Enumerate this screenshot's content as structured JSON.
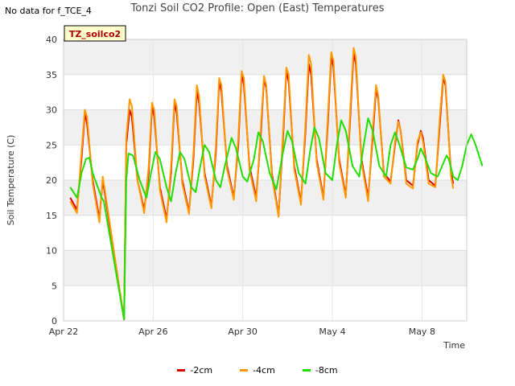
{
  "header": {
    "no_data": "No data for f_TCE_4",
    "title": "Tonzi Soil CO2 Profile: Open (East) Temperatures"
  },
  "chart_data": {
    "type": "line",
    "title": "Tonzi Soil CO2 Profile: Open (East) Temperatures",
    "xlabel": "Time",
    "ylabel": "Soil Temperature (C)",
    "xlim": [
      0,
      18
    ],
    "ylim": [
      0,
      40
    ],
    "yticks": [
      0,
      5,
      10,
      15,
      20,
      25,
      30,
      35,
      40
    ],
    "xticks": [
      {
        "value": 0,
        "label": "Apr 22"
      },
      {
        "value": 4,
        "label": "Apr 26"
      },
      {
        "value": 8,
        "label": "Apr 30"
      },
      {
        "value": 12,
        "label": "May 4"
      },
      {
        "value": 16,
        "label": "May 8"
      }
    ],
    "annotation": "TZ_soilco2",
    "grid": true,
    "legend_position": "bottom",
    "series": [
      {
        "name": "-2cm",
        "color": "#dd0000",
        "points": [
          [
            0.3,
            17.5
          ],
          [
            0.6,
            15.8
          ],
          [
            0.8,
            23
          ],
          [
            0.95,
            29.5
          ],
          [
            1.05,
            28
          ],
          [
            1.3,
            20
          ],
          [
            1.6,
            14.5
          ],
          [
            1.75,
            20
          ],
          [
            1.8,
            19
          ],
          [
            2.7,
            0.2
          ],
          [
            2.8,
            25
          ],
          [
            2.95,
            30
          ],
          [
            3.05,
            29
          ],
          [
            3.3,
            20
          ],
          [
            3.6,
            15.8
          ],
          [
            3.8,
            21
          ],
          [
            3.95,
            30.5
          ],
          [
            4.05,
            29
          ],
          [
            4.3,
            19
          ],
          [
            4.6,
            14.5
          ],
          [
            4.8,
            21
          ],
          [
            4.95,
            31
          ],
          [
            5.05,
            29.5
          ],
          [
            5.3,
            20
          ],
          [
            5.6,
            15.5
          ],
          [
            5.8,
            23
          ],
          [
            5.95,
            32.5
          ],
          [
            6.05,
            31
          ],
          [
            6.3,
            21
          ],
          [
            6.6,
            16.3
          ],
          [
            6.8,
            24
          ],
          [
            6.95,
            34
          ],
          [
            7.05,
            32.5
          ],
          [
            7.3,
            22
          ],
          [
            7.6,
            17.5
          ],
          [
            7.8,
            25
          ],
          [
            7.95,
            35
          ],
          [
            8.05,
            33.5
          ],
          [
            8.3,
            22
          ],
          [
            8.6,
            17.5
          ],
          [
            8.8,
            26
          ],
          [
            8.95,
            34.5
          ],
          [
            9.05,
            33
          ],
          [
            9.3,
            21
          ],
          [
            9.6,
            15
          ],
          [
            9.8,
            26
          ],
          [
            9.95,
            35.5
          ],
          [
            10.05,
            34
          ],
          [
            10.3,
            22
          ],
          [
            10.6,
            16.8
          ],
          [
            10.8,
            27
          ],
          [
            10.95,
            36.5
          ],
          [
            11.05,
            35
          ],
          [
            11.3,
            23
          ],
          [
            11.6,
            17.5
          ],
          [
            11.8,
            28
          ],
          [
            11.95,
            37.5
          ],
          [
            12.05,
            36
          ],
          [
            12.3,
            23
          ],
          [
            12.6,
            17.8
          ],
          [
            12.8,
            29
          ],
          [
            12.95,
            38
          ],
          [
            13.05,
            36.5
          ],
          [
            13.3,
            23
          ],
          [
            13.6,
            17.5
          ],
          [
            13.8,
            26
          ],
          [
            13.95,
            33
          ],
          [
            14.05,
            31.5
          ],
          [
            14.3,
            21
          ],
          [
            14.6,
            19.8
          ],
          [
            14.8,
            25
          ],
          [
            14.95,
            28.5
          ],
          [
            15.05,
            27
          ],
          [
            15.3,
            20
          ],
          [
            15.6,
            19.2
          ],
          [
            15.8,
            25
          ],
          [
            15.95,
            27
          ],
          [
            16.05,
            26
          ],
          [
            16.3,
            20
          ],
          [
            16.6,
            19.2
          ],
          [
            16.8,
            28
          ],
          [
            16.95,
            34.5
          ],
          [
            17.05,
            33.5
          ],
          [
            17.3,
            21
          ],
          [
            17.4,
            19.5
          ]
        ]
      },
      {
        "name": "-4cm",
        "color": "#ff9900",
        "points": [
          [
            0.3,
            17
          ],
          [
            0.6,
            15.3
          ],
          [
            0.8,
            24
          ],
          [
            0.95,
            30
          ],
          [
            1.05,
            29
          ],
          [
            1.3,
            19.5
          ],
          [
            1.6,
            14
          ],
          [
            1.75,
            20.5
          ],
          [
            1.8,
            19.5
          ],
          [
            2.7,
            0.2
          ],
          [
            2.8,
            26
          ],
          [
            2.95,
            31.5
          ],
          [
            3.05,
            30.5
          ],
          [
            3.3,
            20
          ],
          [
            3.6,
            15.3
          ],
          [
            3.8,
            22
          ],
          [
            3.95,
            31
          ],
          [
            4.05,
            30
          ],
          [
            4.3,
            18.5
          ],
          [
            4.6,
            14
          ],
          [
            4.8,
            22
          ],
          [
            4.95,
            31.5
          ],
          [
            5.05,
            30.5
          ],
          [
            5.3,
            19.5
          ],
          [
            5.6,
            15.2
          ],
          [
            5.8,
            24
          ],
          [
            5.95,
            33.5
          ],
          [
            6.05,
            32
          ],
          [
            6.3,
            20.5
          ],
          [
            6.6,
            16
          ],
          [
            6.8,
            25
          ],
          [
            6.95,
            34.5
          ],
          [
            7.05,
            33.5
          ],
          [
            7.3,
            21.5
          ],
          [
            7.6,
            17.2
          ],
          [
            7.8,
            26
          ],
          [
            7.95,
            35.5
          ],
          [
            8.05,
            34.5
          ],
          [
            8.3,
            21.5
          ],
          [
            8.6,
            17
          ],
          [
            8.8,
            27
          ],
          [
            8.95,
            34.8
          ],
          [
            9.05,
            33.5
          ],
          [
            9.3,
            20.5
          ],
          [
            9.6,
            14.8
          ],
          [
            9.8,
            27
          ],
          [
            9.95,
            36
          ],
          [
            10.05,
            35
          ],
          [
            10.3,
            21.5
          ],
          [
            10.6,
            16.5
          ],
          [
            10.8,
            28
          ],
          [
            10.95,
            37.8
          ],
          [
            11.05,
            36.5
          ],
          [
            11.3,
            22.5
          ],
          [
            11.6,
            17.2
          ],
          [
            11.8,
            29
          ],
          [
            11.95,
            38.2
          ],
          [
            12.05,
            37
          ],
          [
            12.3,
            22.5
          ],
          [
            12.6,
            17.5
          ],
          [
            12.8,
            30
          ],
          [
            12.95,
            38.8
          ],
          [
            13.05,
            37.5
          ],
          [
            13.3,
            22.5
          ],
          [
            13.6,
            17
          ],
          [
            13.8,
            27
          ],
          [
            13.95,
            33.5
          ],
          [
            14.05,
            32
          ],
          [
            14.3,
            20.5
          ],
          [
            14.6,
            19.5
          ],
          [
            14.8,
            25.5
          ],
          [
            14.95,
            28.3
          ],
          [
            15.05,
            27
          ],
          [
            15.3,
            19.5
          ],
          [
            15.6,
            18.8
          ],
          [
            15.8,
            25.5
          ],
          [
            15.95,
            26.8
          ],
          [
            16.05,
            25.5
          ],
          [
            16.3,
            19.5
          ],
          [
            16.6,
            19
          ],
          [
            16.8,
            29
          ],
          [
            16.95,
            35
          ],
          [
            17.05,
            34
          ],
          [
            17.3,
            20.5
          ],
          [
            17.4,
            18.8
          ]
        ]
      },
      {
        "name": "-8cm",
        "color": "#22dd00",
        "points": [
          [
            0.3,
            19
          ],
          [
            0.6,
            17.5
          ],
          [
            0.8,
            21
          ],
          [
            1.0,
            23
          ],
          [
            1.15,
            23.2
          ],
          [
            1.3,
            21
          ],
          [
            1.7,
            17.5
          ],
          [
            1.8,
            17
          ],
          [
            2.7,
            0.2
          ],
          [
            2.8,
            20
          ],
          [
            2.9,
            23.8
          ],
          [
            3.1,
            23.5
          ],
          [
            3.4,
            20
          ],
          [
            3.7,
            17.5
          ],
          [
            3.9,
            21
          ],
          [
            4.1,
            24
          ],
          [
            4.3,
            23
          ],
          [
            4.6,
            19
          ],
          [
            4.8,
            17
          ],
          [
            5.0,
            21
          ],
          [
            5.2,
            24
          ],
          [
            5.4,
            23
          ],
          [
            5.7,
            19
          ],
          [
            5.9,
            18.3
          ],
          [
            6.1,
            22
          ],
          [
            6.3,
            25
          ],
          [
            6.5,
            24
          ],
          [
            6.8,
            20
          ],
          [
            7.0,
            19
          ],
          [
            7.2,
            22
          ],
          [
            7.5,
            26
          ],
          [
            7.7,
            24.5
          ],
          [
            8.0,
            20.5
          ],
          [
            8.2,
            19.8
          ],
          [
            8.5,
            23
          ],
          [
            8.7,
            26.8
          ],
          [
            8.9,
            25.5
          ],
          [
            9.2,
            21
          ],
          [
            9.5,
            18.7
          ],
          [
            9.8,
            24
          ],
          [
            10.0,
            27
          ],
          [
            10.2,
            25.5
          ],
          [
            10.5,
            21
          ],
          [
            10.8,
            19.5
          ],
          [
            11.0,
            24
          ],
          [
            11.2,
            27.5
          ],
          [
            11.4,
            26
          ],
          [
            11.7,
            21
          ],
          [
            12.0,
            20
          ],
          [
            12.2,
            25
          ],
          [
            12.4,
            28.5
          ],
          [
            12.6,
            27
          ],
          [
            12.9,
            22
          ],
          [
            13.2,
            20.5
          ],
          [
            13.4,
            25
          ],
          [
            13.6,
            28.8
          ],
          [
            13.8,
            27
          ],
          [
            14.1,
            22
          ],
          [
            14.4,
            20.5
          ],
          [
            14.6,
            25
          ],
          [
            14.8,
            26.8
          ],
          [
            15.0,
            25
          ],
          [
            15.3,
            21.8
          ],
          [
            15.6,
            21.5
          ],
          [
            15.8,
            23
          ],
          [
            15.95,
            24.5
          ],
          [
            16.1,
            23.5
          ],
          [
            16.4,
            21
          ],
          [
            16.7,
            20.5
          ],
          [
            16.9,
            22
          ],
          [
            17.1,
            23.5
          ],
          [
            17.2,
            23
          ],
          [
            17.4,
            20.5
          ],
          [
            17.6,
            20
          ],
          [
            17.8,
            22
          ],
          [
            18.0,
            25
          ],
          [
            18.2,
            26.5
          ],
          [
            18.4,
            25
          ],
          [
            18.7,
            22
          ]
        ]
      }
    ]
  }
}
